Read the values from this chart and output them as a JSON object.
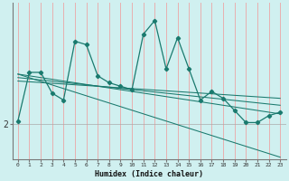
{
  "bg_color": "#d0f0f0",
  "line_color": "#1a7a6e",
  "grid_color": "#e8b0b0",
  "xlabel": "Humidex (Indice chaleur)",
  "x_ticks": [
    0,
    1,
    2,
    3,
    4,
    5,
    6,
    7,
    8,
    9,
    10,
    11,
    12,
    13,
    14,
    15,
    16,
    17,
    18,
    19,
    20,
    21,
    22,
    23
  ],
  "main_x": [
    0,
    1,
    2,
    3,
    4,
    5,
    6,
    7,
    8,
    9,
    10,
    11,
    12,
    13,
    14,
    15,
    16,
    17,
    18,
    19,
    20,
    21,
    22,
    23
  ],
  "main_y": [
    2.1,
    3.5,
    3.5,
    2.9,
    2.7,
    4.4,
    4.3,
    3.4,
    3.2,
    3.1,
    3.0,
    4.6,
    5.0,
    3.6,
    4.5,
    3.6,
    2.7,
    2.95,
    2.75,
    2.4,
    2.05,
    2.05,
    2.25,
    2.35
  ],
  "line1_x": [
    0,
    23
  ],
  "line1_y": [
    3.45,
    2.3
  ],
  "line2_x": [
    0,
    23
  ],
  "line2_y": [
    3.35,
    2.55
  ],
  "line3_x": [
    0,
    23
  ],
  "line3_y": [
    3.25,
    2.75
  ],
  "line4_x": [
    0,
    23
  ],
  "line4_y": [
    3.45,
    1.05
  ],
  "ytick_val": 2.0,
  "ytick_label": "2",
  "ylim": [
    1.0,
    5.5
  ],
  "xlim": [
    -0.5,
    23.5
  ]
}
